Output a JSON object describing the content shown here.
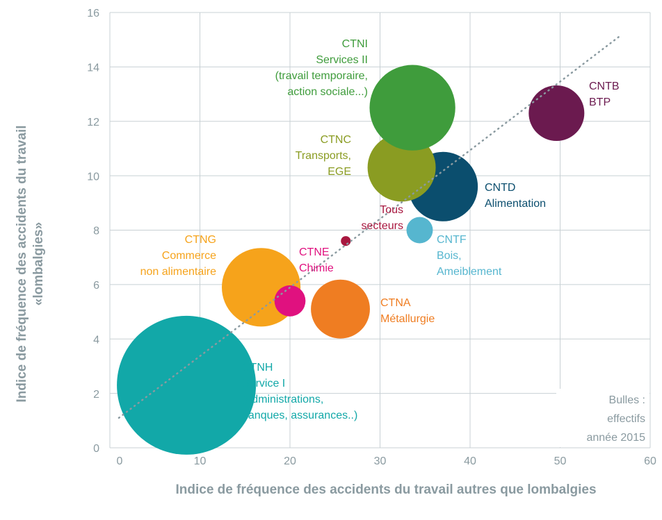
{
  "chart_data": {
    "type": "scatter",
    "x_label": "Indice de fréquence des accidents du travail autres que lombalgies",
    "y_label": [
      "Indice de fréquence des accidents du travail",
      "«lombalgies»"
    ],
    "note": [
      "Bulles :",
      "effectifs",
      "année 2015"
    ],
    "xlim": [
      0,
      60
    ],
    "xticks": [
      0,
      10,
      20,
      30,
      40,
      50,
      60
    ],
    "ylim": [
      0,
      16
    ],
    "yticks": [
      0,
      2,
      4,
      6,
      8,
      10,
      12,
      14,
      16
    ],
    "grid": true,
    "trendline": {
      "x": [
        1,
        56.5
      ],
      "y": [
        1.1,
        15.1
      ],
      "color": "#8a9aa0"
    },
    "points": [
      {
        "label": [
          "CTNH",
          "Service I",
          "(administrations,",
          "banques, assurances..)"
        ],
        "color": "#12a8a8",
        "x": 8.5,
        "y": 2.3,
        "size": 100
      },
      {
        "label": [
          "CTNG",
          "Commerce",
          "non alimentaire"
        ],
        "color": "#f6a31b",
        "x": 16.8,
        "y": 5.9,
        "size": 32
      },
      {
        "label": [
          "CTNE",
          "Chimie"
        ],
        "color": "#e0117f",
        "x": 20,
        "y": 5.4,
        "size": 5
      },
      {
        "label": [
          "CTNA",
          "Métallurgie"
        ],
        "color": "#ef7d22",
        "x": 25.6,
        "y": 5.1,
        "size": 18
      },
      {
        "label": [
          "Tous",
          "secteurs"
        ],
        "color": "#a8173f",
        "x": 26.2,
        "y": 7.6,
        "size": 0.5
      },
      {
        "label": [
          "CNTF",
          "Bois,",
          "Ameiblement"
        ],
        "color": "#56b6cf",
        "x": 34.4,
        "y": 8.0,
        "size": 3.6
      },
      {
        "label": [
          "CNTD",
          "Alimentation"
        ],
        "color": "#0b4e6e",
        "x": 37,
        "y": 9.6,
        "size": 25
      },
      {
        "label": [
          "CTNC",
          "Transports,",
          "EGE"
        ],
        "color": "#8a9c22",
        "x": 32.4,
        "y": 10.3,
        "size": 24
      },
      {
        "label": [
          "CTNI",
          "Services II",
          "(travail temporaire,",
          "action sociale...)"
        ],
        "color": "#3f9c3c",
        "x": 33.6,
        "y": 12.5,
        "size": 38
      },
      {
        "label": [
          "CNTB",
          "BTP"
        ],
        "color": "#6b1a4f",
        "x": 49.6,
        "y": 12.3,
        "size": 16
      }
    ]
  }
}
